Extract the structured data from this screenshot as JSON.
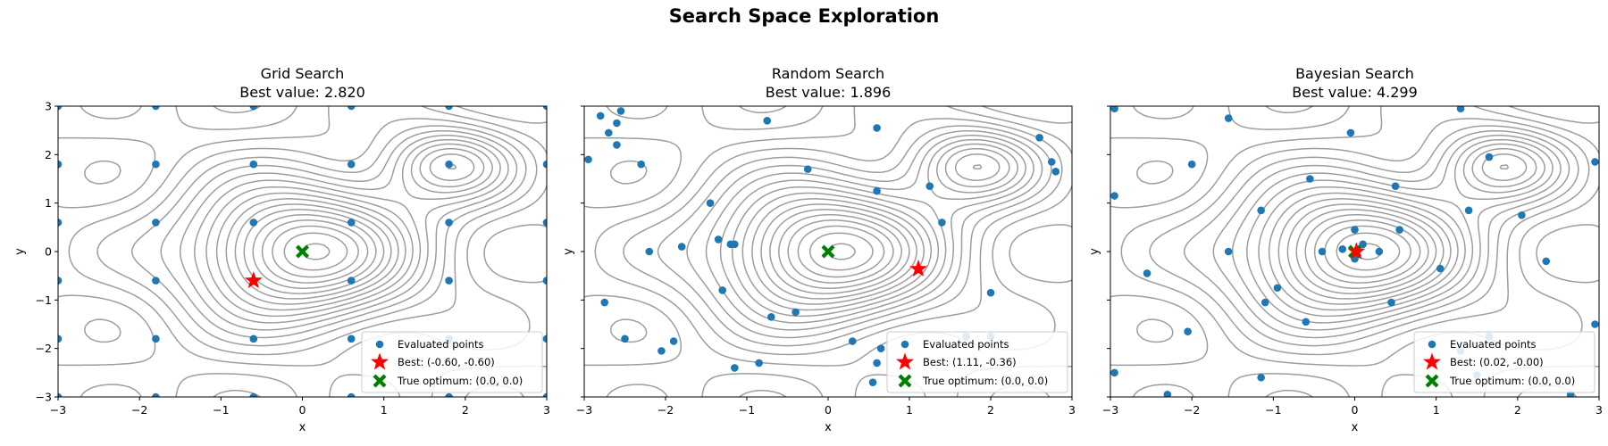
{
  "figure": {
    "title": "Search Space Exploration"
  },
  "chart_data": [
    {
      "type": "scatter",
      "title": "Grid Search",
      "subtitle": "Best value: 2.820",
      "xlabel": "x",
      "ylabel": "y",
      "xlim": [
        -3,
        3
      ],
      "ylim": [
        -3,
        3
      ],
      "xticks": [
        "−3",
        "−2",
        "−1",
        "0",
        "1",
        "2",
        "3"
      ],
      "yticks": [
        "−3",
        "−2",
        "−1",
        "0",
        "1",
        "2",
        "3"
      ],
      "legend_position": "lower-right",
      "colors": {
        "points": "#1f77b4",
        "best": "#ff0000",
        "optimum": "#008000",
        "contours": "#9e9e9e"
      },
      "legend": [
        "Evaluated points",
        "Best: (-0.60, -0.60)",
        "True optimum: (0.0, 0.0)"
      ],
      "series": [
        {
          "name": "Evaluated points",
          "points": [
            [
              -3,
              -3
            ],
            [
              -1.8,
              -3
            ],
            [
              -0.6,
              -3
            ],
            [
              0.6,
              -3
            ],
            [
              1.8,
              -3
            ],
            [
              3,
              -3
            ],
            [
              -3,
              -1.8
            ],
            [
              -1.8,
              -1.8
            ],
            [
              -0.6,
              -1.8
            ],
            [
              0.6,
              -1.8
            ],
            [
              1.8,
              -1.8
            ],
            [
              3,
              -1.8
            ],
            [
              -3,
              -0.6
            ],
            [
              -1.8,
              -0.6
            ],
            [
              -0.6,
              -0.6
            ],
            [
              0.6,
              -0.6
            ],
            [
              1.8,
              -0.6
            ],
            [
              3,
              -0.6
            ],
            [
              -3,
              0.6
            ],
            [
              -1.8,
              0.6
            ],
            [
              -0.6,
              0.6
            ],
            [
              0.6,
              0.6
            ],
            [
              1.8,
              0.6
            ],
            [
              3,
              0.6
            ],
            [
              -3,
              1.8
            ],
            [
              -1.8,
              1.8
            ],
            [
              -0.6,
              1.8
            ],
            [
              0.6,
              1.8
            ],
            [
              1.8,
              1.8
            ],
            [
              3,
              1.8
            ],
            [
              -3,
              3
            ],
            [
              -1.8,
              3
            ],
            [
              -0.6,
              3
            ],
            [
              0.6,
              3
            ],
            [
              1.8,
              3
            ],
            [
              3,
              3
            ]
          ]
        },
        {
          "name": "Best: (-0.60, -0.60)",
          "points": [
            [
              -0.6,
              -0.6
            ]
          ]
        },
        {
          "name": "True optimum: (0.0, 0.0)",
          "points": [
            [
              0,
              0
            ]
          ]
        }
      ]
    },
    {
      "type": "scatter",
      "title": "Random Search",
      "subtitle": "Best value: 1.896",
      "xlabel": "x",
      "ylabel": "y",
      "xlim": [
        -3,
        3
      ],
      "ylim": [
        -3,
        3
      ],
      "xticks": [
        "−3",
        "−2",
        "−1",
        "0",
        "1",
        "2",
        "3"
      ],
      "yticks": [
        "−3",
        "−2",
        "−1",
        "0",
        "1",
        "2",
        "3"
      ],
      "legend_position": "lower-right",
      "colors": {
        "points": "#1f77b4",
        "best": "#ff0000",
        "optimum": "#008000",
        "contours": "#9e9e9e"
      },
      "legend": [
        "Evaluated points",
        "Best: (1.11, -0.36)",
        "True optimum: (0.0, 0.0)"
      ],
      "series": [
        {
          "name": "Evaluated points",
          "points": [
            [
              -2.95,
              1.9
            ],
            [
              -2.8,
              2.8
            ],
            [
              -2.7,
              2.45
            ],
            [
              -2.6,
              2.65
            ],
            [
              -2.55,
              2.9
            ],
            [
              -2.6,
              2.2
            ],
            [
              -2.3,
              1.8
            ],
            [
              -2.2,
              0.0
            ],
            [
              -2.5,
              -1.8
            ],
            [
              -2.75,
              -1.05
            ],
            [
              -2.05,
              -2.05
            ],
            [
              -1.9,
              -1.85
            ],
            [
              -1.8,
              0.1
            ],
            [
              -1.45,
              1.0
            ],
            [
              -1.35,
              0.25
            ],
            [
              -1.2,
              0.15
            ],
            [
              -1.15,
              0.15
            ],
            [
              -1.3,
              -0.8
            ],
            [
              -1.15,
              -2.4
            ],
            [
              -0.85,
              -2.3
            ],
            [
              -0.7,
              -1.35
            ],
            [
              -0.4,
              -1.25
            ],
            [
              -0.75,
              2.7
            ],
            [
              -0.25,
              1.7
            ],
            [
              0.6,
              2.55
            ],
            [
              0.6,
              1.25
            ],
            [
              1.25,
              1.35
            ],
            [
              1.4,
              0.6
            ],
            [
              1.7,
              -1.75
            ],
            [
              2.0,
              -0.85
            ],
            [
              2.0,
              -1.75
            ],
            [
              2.6,
              2.35
            ],
            [
              2.75,
              1.85
            ],
            [
              2.8,
              1.65
            ],
            [
              0.3,
              -1.85
            ],
            [
              0.6,
              -2.3
            ],
            [
              0.65,
              -2.0
            ],
            [
              0.55,
              -2.7
            ]
          ]
        },
        {
          "name": "Best: (1.11, -0.36)",
          "points": [
            [
              1.11,
              -0.36
            ]
          ]
        },
        {
          "name": "True optimum: (0.0, 0.0)",
          "points": [
            [
              0,
              0
            ]
          ]
        }
      ]
    },
    {
      "type": "scatter",
      "title": "Bayesian Search",
      "subtitle": "Best value: 4.299",
      "xlabel": "x",
      "ylabel": "y",
      "xlim": [
        -3,
        3
      ],
      "ylim": [
        -3,
        3
      ],
      "xticks": [
        "−3",
        "−2",
        "−1",
        "0",
        "1",
        "2",
        "3"
      ],
      "yticks": [
        "−3",
        "−2",
        "−1",
        "0",
        "1",
        "2",
        "3"
      ],
      "legend_position": "lower-right",
      "colors": {
        "points": "#1f77b4",
        "best": "#ff0000",
        "optimum": "#008000",
        "contours": "#9e9e9e"
      },
      "legend": [
        "Evaluated points",
        "Best: (0.02, -0.00)",
        "True optimum: (0.0, 0.0)"
      ],
      "series": [
        {
          "name": "Evaluated points",
          "points": [
            [
              -2.95,
              2.95
            ],
            [
              -2.95,
              1.15
            ],
            [
              -2.55,
              -0.45
            ],
            [
              -2.0,
              1.8
            ],
            [
              -2.05,
              -1.65
            ],
            [
              -1.55,
              2.75
            ],
            [
              -1.55,
              0.0
            ],
            [
              -1.15,
              0.85
            ],
            [
              -1.1,
              -1.05
            ],
            [
              -0.95,
              -0.75
            ],
            [
              -0.6,
              -1.45
            ],
            [
              -0.55,
              1.5
            ],
            [
              -0.4,
              0.0
            ],
            [
              -0.15,
              0.05
            ],
            [
              -0.05,
              2.45
            ],
            [
              0.0,
              0.45
            ],
            [
              0.0,
              -0.15
            ],
            [
              0.1,
              0.15
            ],
            [
              0.3,
              0.0
            ],
            [
              0.45,
              -1.05
            ],
            [
              0.5,
              1.35
            ],
            [
              0.55,
              0.45
            ],
            [
              1.05,
              -0.35
            ],
            [
              1.4,
              0.85
            ],
            [
              1.3,
              2.95
            ],
            [
              1.65,
              1.95
            ],
            [
              1.65,
              -1.75
            ],
            [
              2.05,
              0.75
            ],
            [
              2.35,
              -0.2
            ],
            [
              1.3,
              -2.05
            ],
            [
              1.5,
              -2.55
            ],
            [
              -2.95,
              -2.5
            ],
            [
              -2.3,
              -2.95
            ],
            [
              -1.15,
              -2.6
            ],
            [
              2.65,
              -2.95
            ],
            [
              2.95,
              -1.5
            ],
            [
              2.95,
              1.85
            ]
          ]
        },
        {
          "name": "Best: (0.02, -0.00)",
          "points": [
            [
              0.02,
              0.0
            ]
          ]
        },
        {
          "name": "True optimum: (0.0, 0.0)",
          "points": [
            [
              0,
              0
            ]
          ]
        }
      ]
    }
  ]
}
